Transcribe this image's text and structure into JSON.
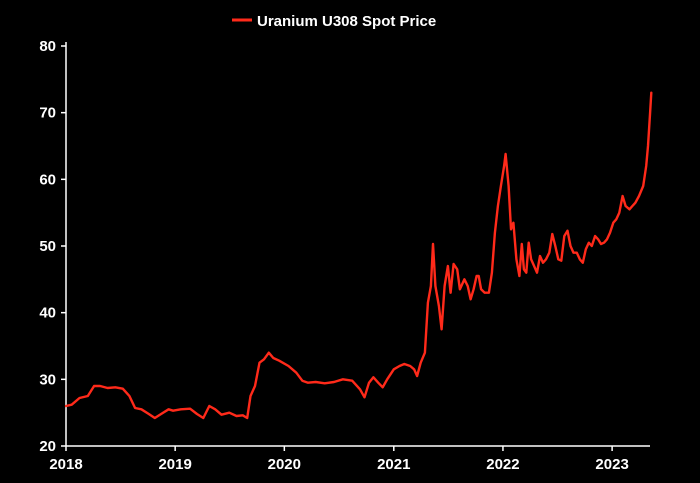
{
  "chart_data": {
    "type": "line",
    "title": "",
    "xlabel": "",
    "ylabel": "",
    "ylim": [
      20,
      80
    ],
    "xlim": [
      "2018-01-01",
      "2023-05-01"
    ],
    "grid": false,
    "legend_position": "top-center",
    "yticks": [
      "20",
      "30",
      "40",
      "50",
      "60",
      "70",
      "80"
    ],
    "xticks": [
      "2018",
      "2019",
      "2020",
      "2021",
      "2022",
      "2023"
    ],
    "series": [
      {
        "name": "Uranium U308 Spot Price",
        "color": "#ff2a1a",
        "points": [
          [
            "2018-01-01",
            26.0
          ],
          [
            "2018-01-20",
            26.2
          ],
          [
            "2018-02-15",
            27.2
          ],
          [
            "2018-03-15",
            27.5
          ],
          [
            "2018-04-05",
            29.0
          ],
          [
            "2018-04-25",
            29.0
          ],
          [
            "2018-05-20",
            28.7
          ],
          [
            "2018-06-15",
            28.8
          ],
          [
            "2018-07-10",
            28.6
          ],
          [
            "2018-08-01",
            27.5
          ],
          [
            "2018-08-20",
            25.7
          ],
          [
            "2018-09-10",
            25.5
          ],
          [
            "2018-10-05",
            24.8
          ],
          [
            "2018-10-25",
            24.2
          ],
          [
            "2018-11-15",
            24.8
          ],
          [
            "2018-12-10",
            25.5
          ],
          [
            "2018-12-25",
            25.3
          ],
          [
            "2019-01-20",
            25.5
          ],
          [
            "2019-02-20",
            25.6
          ],
          [
            "2019-03-15",
            24.8
          ],
          [
            "2019-04-05",
            24.2
          ],
          [
            "2019-04-25",
            26.0
          ],
          [
            "2019-05-15",
            25.5
          ],
          [
            "2019-06-05",
            24.7
          ],
          [
            "2019-07-01",
            25.0
          ],
          [
            "2019-07-25",
            24.5
          ],
          [
            "2019-08-15",
            24.6
          ],
          [
            "2019-08-30",
            24.2
          ],
          [
            "2019-09-10",
            27.5
          ],
          [
            "2019-09-25",
            29.0
          ],
          [
            "2019-10-10",
            32.5
          ],
          [
            "2019-10-25",
            33.0
          ],
          [
            "2019-11-10",
            34.0
          ],
          [
            "2019-11-25",
            33.2
          ],
          [
            "2019-12-15",
            32.8
          ],
          [
            "2020-01-15",
            32.0
          ],
          [
            "2020-02-10",
            31.0
          ],
          [
            "2020-03-01",
            29.8
          ],
          [
            "2020-03-20",
            29.5
          ],
          [
            "2020-04-15",
            29.6
          ],
          [
            "2020-05-15",
            29.4
          ],
          [
            "2020-06-15",
            29.6
          ],
          [
            "2020-07-15",
            30.0
          ],
          [
            "2020-08-15",
            29.8
          ],
          [
            "2020-09-10",
            28.5
          ],
          [
            "2020-09-25",
            27.3
          ],
          [
            "2020-10-10",
            29.5
          ],
          [
            "2020-10-25",
            30.3
          ],
          [
            "2020-11-10",
            29.5
          ],
          [
            "2020-11-25",
            28.8
          ],
          [
            "2020-12-10",
            30.0
          ],
          [
            "2021-01-01",
            31.5
          ],
          [
            "2021-01-20",
            32.0
          ],
          [
            "2021-02-05",
            32.3
          ],
          [
            "2021-02-25",
            32.0
          ],
          [
            "2021-03-10",
            31.5
          ],
          [
            "2021-03-20",
            30.5
          ],
          [
            "2021-04-01",
            32.5
          ],
          [
            "2021-04-15",
            34.0
          ],
          [
            "2021-04-25",
            41.5
          ],
          [
            "2021-05-05",
            44.0
          ],
          [
            "2021-05-12",
            50.3
          ],
          [
            "2021-05-20",
            44.0
          ],
          [
            "2021-06-01",
            41.0
          ],
          [
            "2021-06-10",
            37.5
          ],
          [
            "2021-06-20",
            44.0
          ],
          [
            "2021-07-01",
            47.0
          ],
          [
            "2021-07-10",
            43.0
          ],
          [
            "2021-07-20",
            47.3
          ],
          [
            "2021-08-01",
            46.5
          ],
          [
            "2021-08-10",
            43.5
          ],
          [
            "2021-08-25",
            45.0
          ],
          [
            "2021-09-05",
            44.0
          ],
          [
            "2021-09-15",
            42.0
          ],
          [
            "2021-09-25",
            43.5
          ],
          [
            "2021-10-05",
            45.5
          ],
          [
            "2021-10-12",
            45.5
          ],
          [
            "2021-10-20",
            43.5
          ],
          [
            "2021-11-01",
            43.0
          ],
          [
            "2021-11-15",
            43.0
          ],
          [
            "2021-11-25",
            46.0
          ],
          [
            "2021-12-05",
            52.0
          ],
          [
            "2021-12-15",
            56.0
          ],
          [
            "2021-12-25",
            59.0
          ],
          [
            "2022-01-05",
            62.0
          ],
          [
            "2022-01-10",
            63.8
          ],
          [
            "2022-01-20",
            59.0
          ],
          [
            "2022-01-28",
            52.5
          ],
          [
            "2022-02-05",
            53.5
          ],
          [
            "2022-02-15",
            48.0
          ],
          [
            "2022-02-25",
            45.5
          ],
          [
            "2022-03-05",
            50.3
          ],
          [
            "2022-03-12",
            46.5
          ],
          [
            "2022-03-20",
            46.0
          ],
          [
            "2022-03-28",
            50.5
          ],
          [
            "2022-04-05",
            48.0
          ],
          [
            "2022-04-15",
            47.0
          ],
          [
            "2022-04-25",
            46.0
          ],
          [
            "2022-05-05",
            48.5
          ],
          [
            "2022-05-15",
            47.5
          ],
          [
            "2022-05-25",
            48.0
          ],
          [
            "2022-06-05",
            49.0
          ],
          [
            "2022-06-15",
            51.8
          ],
          [
            "2022-06-25",
            50.0
          ],
          [
            "2022-07-05",
            48.0
          ],
          [
            "2022-07-15",
            47.8
          ],
          [
            "2022-07-25",
            51.5
          ],
          [
            "2022-08-05",
            52.3
          ],
          [
            "2022-08-15",
            50.0
          ],
          [
            "2022-08-25",
            49.0
          ],
          [
            "2022-09-05",
            49.0
          ],
          [
            "2022-09-15",
            48.0
          ],
          [
            "2022-09-25",
            47.5
          ],
          [
            "2022-10-05",
            49.5
          ],
          [
            "2022-10-15",
            50.5
          ],
          [
            "2022-10-25",
            50.0
          ],
          [
            "2022-11-05",
            51.5
          ],
          [
            "2022-11-15",
            51.0
          ],
          [
            "2022-11-25",
            50.3
          ],
          [
            "2022-12-05",
            50.5
          ],
          [
            "2022-12-15",
            51.0
          ],
          [
            "2022-12-25",
            52.0
          ],
          [
            "2023-01-05",
            53.5
          ],
          [
            "2023-01-15",
            54.0
          ],
          [
            "2023-01-25",
            55.0
          ],
          [
            "2023-02-05",
            57.5
          ],
          [
            "2023-02-15",
            56.0
          ],
          [
            "2023-02-28",
            55.5
          ],
          [
            "2023-03-10",
            56.0
          ],
          [
            "2023-03-20",
            56.5
          ],
          [
            "2023-04-01",
            57.5
          ],
          [
            "2023-04-15",
            59.0
          ],
          [
            "2023-04-25",
            62.0
          ],
          [
            "2023-05-01",
            65.0
          ],
          [
            "2023-05-08",
            70.0
          ],
          [
            "2023-05-12",
            73.0
          ]
        ]
      }
    ]
  }
}
